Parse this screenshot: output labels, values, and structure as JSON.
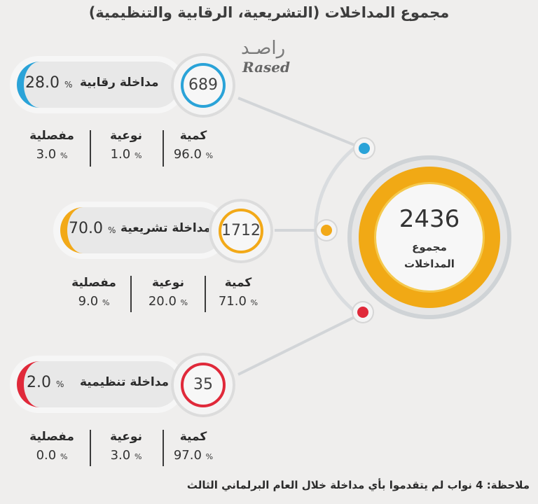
{
  "title": "مجموع المداخلات (التشريعية، الرقابية والتنظيمية)",
  "logo": {
    "arabic": "راصـد",
    "latin": "Rased"
  },
  "total": {
    "value": "2436",
    "label_line1": "مجموع",
    "label_line2": "المداخلات"
  },
  "pct_sign": "%",
  "categories": [
    {
      "label": "مداخلة رقابية",
      "percent": "28.0",
      "count": "689",
      "color": "#2aa3d8",
      "stats": [
        {
          "label": "كمية",
          "value": "96.0"
        },
        {
          "label": "نوعية",
          "value": "1.0"
        },
        {
          "label": "مفصلية",
          "value": "3.0"
        }
      ]
    },
    {
      "label": "مداخلة تشريعية",
      "percent": "70.0",
      "count": "1712",
      "color": "#f2a918",
      "stats": [
        {
          "label": "كمية",
          "value": "71.0"
        },
        {
          "label": "نوعية",
          "value": "20.0"
        },
        {
          "label": "مفصلية",
          "value": "9.0"
        }
      ]
    },
    {
      "label": "مداخلة تنظيمية",
      "percent": "2.0",
      "count": "35",
      "color": "#e0293a",
      "stats": [
        {
          "label": "كمية",
          "value": "97.0"
        },
        {
          "label": "نوعية",
          "value": "3.0"
        },
        {
          "label": "مفصلية",
          "value": "0.0"
        }
      ]
    }
  ],
  "note": "ملاحظة: 4 نواب لم يتقدموا بأي مداخلة خلال العام البرلماني الثالث"
}
